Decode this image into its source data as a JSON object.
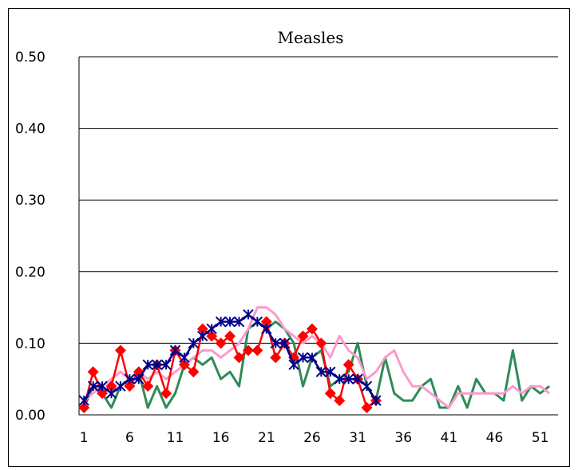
{
  "chart_data": {
    "type": "line",
    "title": "Measles",
    "xlabel": "",
    "ylabel": "",
    "xlim": [
      1,
      53
    ],
    "ylim": [
      0,
      0.5
    ],
    "x_ticks": [
      "1",
      "6",
      "11",
      "16",
      "21",
      "26",
      "31",
      "36",
      "41",
      "46",
      "51"
    ],
    "y_ticks": [
      "0.00",
      "0.10",
      "0.20",
      "0.30",
      "0.40",
      "0.50"
    ],
    "grid": "horizontal",
    "legend": "none",
    "x": [
      1,
      2,
      3,
      4,
      5,
      6,
      7,
      8,
      9,
      10,
      11,
      12,
      13,
      14,
      15,
      16,
      17,
      18,
      19,
      20,
      21,
      22,
      23,
      24,
      25,
      26,
      27,
      28,
      29,
      30,
      31,
      32,
      33,
      34,
      35,
      36,
      37,
      38,
      39,
      40,
      41,
      42,
      43,
      44,
      45,
      46,
      47,
      48,
      49,
      50,
      51,
      52,
      53
    ],
    "series": [
      {
        "color": "#2e8b57",
        "marker": "none",
        "values": [
          0.01,
          0.04,
          0.03,
          0.01,
          0.04,
          0.05,
          0.06,
          0.01,
          0.04,
          0.01,
          0.03,
          0.07,
          0.08,
          0.07,
          0.08,
          0.05,
          0.06,
          0.04,
          0.12,
          0.13,
          0.12,
          0.13,
          0.12,
          0.1,
          0.04,
          0.08,
          0.09,
          0.04,
          0.05,
          0.06,
          0.1,
          0.04,
          0.02,
          0.08,
          0.03,
          0.02,
          0.02,
          0.04,
          0.05,
          0.01,
          0.01,
          0.04,
          0.01,
          0.05,
          0.03,
          0.03,
          0.02,
          0.09,
          0.02,
          0.04,
          0.03,
          0.04,
          null
        ]
      },
      {
        "color": "#ff99cc",
        "marker": "none",
        "values": [
          0.02,
          0.03,
          0.04,
          0.05,
          0.06,
          0.05,
          0.06,
          0.05,
          0.06,
          0.05,
          0.06,
          0.07,
          0.08,
          0.09,
          0.09,
          0.08,
          0.09,
          0.1,
          0.12,
          0.15,
          0.15,
          0.14,
          0.12,
          0.11,
          0.1,
          0.11,
          0.1,
          0.08,
          0.11,
          0.09,
          0.08,
          0.05,
          0.06,
          0.08,
          0.09,
          0.06,
          0.04,
          0.04,
          0.03,
          0.02,
          0.01,
          0.03,
          0.03,
          0.03,
          0.03,
          0.03,
          0.03,
          0.04,
          0.03,
          0.04,
          0.04,
          0.03,
          null
        ]
      },
      {
        "color": "#ff0000",
        "marker": "diamond",
        "values": [
          0.01,
          0.06,
          0.03,
          0.04,
          0.09,
          0.04,
          0.06,
          0.04,
          0.07,
          0.03,
          0.09,
          0.07,
          0.06,
          0.12,
          0.11,
          0.1,
          0.11,
          0.08,
          0.09,
          0.09,
          0.13,
          0.08,
          0.1,
          0.08,
          0.11,
          0.12,
          0.1,
          0.03,
          0.02,
          0.07,
          0.05,
          0.01,
          0.02,
          null,
          null,
          null,
          null,
          null,
          null,
          null,
          null,
          null,
          null,
          null,
          null,
          null,
          null,
          null,
          null,
          null,
          null,
          null,
          null
        ]
      },
      {
        "color": "#00008b",
        "marker": "star",
        "values": [
          0.02,
          0.04,
          0.04,
          0.03,
          0.04,
          0.05,
          0.05,
          0.07,
          0.07,
          0.07,
          0.09,
          0.08,
          0.1,
          0.11,
          0.12,
          0.13,
          0.13,
          0.13,
          0.14,
          0.13,
          0.12,
          0.1,
          0.1,
          0.07,
          0.08,
          0.08,
          0.06,
          0.06,
          0.05,
          0.05,
          0.05,
          0.04,
          0.02,
          null,
          null,
          null,
          null,
          null,
          null,
          null,
          null,
          null,
          null,
          null,
          null,
          null,
          null,
          null,
          null,
          null,
          null,
          null,
          null
        ]
      }
    ]
  }
}
